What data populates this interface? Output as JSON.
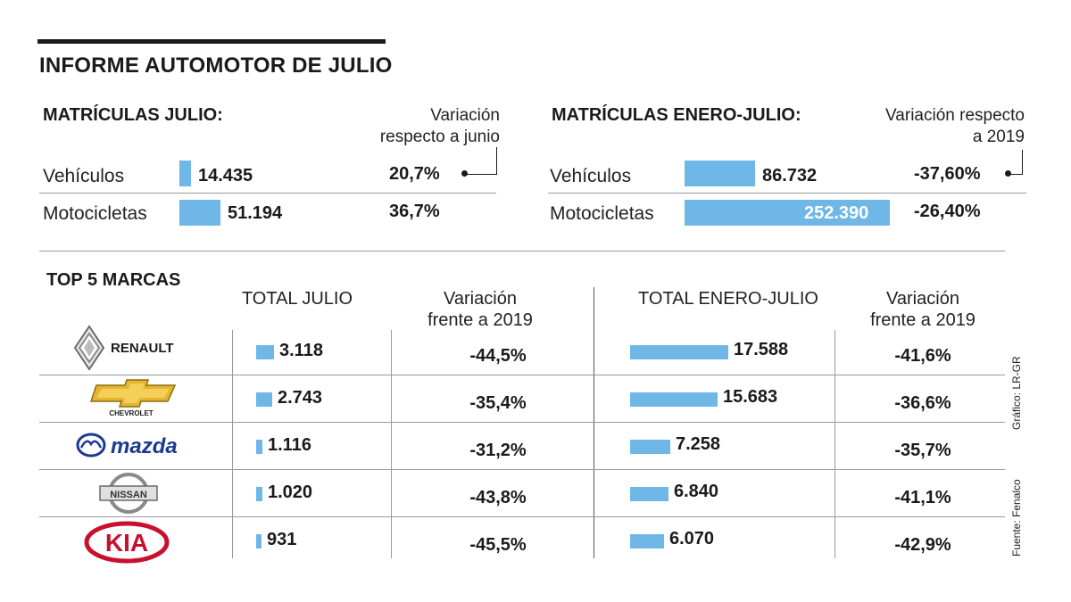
{
  "title": "INFORME AUTOMOTOR DE JULIO",
  "julio": {
    "heading": "MATRÍCULAS JULIO:",
    "var_line1": "Variación",
    "var_line2": "respecto a junio",
    "rows": [
      {
        "label": "Vehículos",
        "value_text": "14.435",
        "value": 14435,
        "pct": "20,7%"
      },
      {
        "label": "Motocicletas",
        "value_text": "51.194",
        "value": 51194,
        "pct": "36,7%"
      }
    ]
  },
  "enero_julio": {
    "heading": "MATRÍCULAS ENERO-JULIO:",
    "var_line1": "Variación respecto",
    "var_line2": "a 2019",
    "rows": [
      {
        "label": "Vehículos",
        "value_text": "86.732",
        "value": 86732,
        "pct": "-37,60%"
      },
      {
        "label": "Motocicletas",
        "value_text": "252.390",
        "value": 252390,
        "pct": "-26,40%"
      }
    ]
  },
  "top5": {
    "heading": "TOP 5 MARCAS",
    "col_total_julio": "TOTAL JULIO",
    "col_var_line1": "Variación",
    "col_var_line2": "frente a 2019",
    "col_total_enero": "TOTAL ENERO-JULIO",
    "col_var2_line1": "Variación",
    "col_var2_line2": "frente a 2019",
    "brands": [
      {
        "brand": "RENAULT",
        "julio_text": "3.118",
        "julio": 3118,
        "var_julio": "-44,5%",
        "enero_text": "17.588",
        "enero": 17588,
        "var_enero": "-41,6%"
      },
      {
        "brand": "CHEVROLET",
        "julio_text": "2.743",
        "julio": 2743,
        "var_julio": "-35,4%",
        "enero_text": "15.683",
        "enero": 15683,
        "var_enero": "-36,6%"
      },
      {
        "brand": "mazda",
        "julio_text": "1.116",
        "julio": 1116,
        "var_julio": "-31,2%",
        "enero_text": "7.258",
        "enero": 7258,
        "var_enero": "-35,7%"
      },
      {
        "brand": "NISSAN",
        "julio_text": "1.020",
        "julio": 1020,
        "var_julio": "-43,8%",
        "enero_text": "6.840",
        "enero": 6840,
        "var_enero": "-41,1%"
      },
      {
        "brand": "KIA",
        "julio_text": "931",
        "julio": 931,
        "var_julio": "-45,5%",
        "enero_text": "6.070",
        "enero": 6070,
        "var_enero": "-42,9%"
      }
    ]
  },
  "credits": {
    "grafico": "Gráfico: LR-GR",
    "fuente": "Fuente: Fenalco"
  },
  "colors": {
    "bar": "#6fb7e6",
    "text": "#1a1a1a",
    "kia_red": "#c8102e",
    "mazda_blue": "#1a3a8f"
  },
  "chart_data": [
    {
      "type": "bar",
      "title": "MATRÍCULAS JULIO:",
      "categories": [
        "Vehículos",
        "Motocicletas"
      ],
      "values": [
        14435,
        51194
      ],
      "variation_pct": [
        20.7,
        36.7
      ]
    },
    {
      "type": "bar",
      "title": "MATRÍCULAS ENERO-JULIO:",
      "categories": [
        "Vehículos",
        "Motocicletas"
      ],
      "values": [
        86732,
        252390
      ],
      "variation_pct": [
        -37.6,
        -26.4
      ]
    },
    {
      "type": "bar",
      "title": "TOP 5 MARCAS - TOTAL JULIO",
      "categories": [
        "Renault",
        "Chevrolet",
        "Mazda",
        "Nissan",
        "Kia"
      ],
      "values": [
        3118,
        2743,
        1116,
        1020,
        931
      ],
      "variation_pct": [
        -44.5,
        -35.4,
        -31.2,
        -43.8,
        -45.5
      ]
    },
    {
      "type": "bar",
      "title": "TOP 5 MARCAS - TOTAL ENERO-JULIO",
      "categories": [
        "Renault",
        "Chevrolet",
        "Mazda",
        "Nissan",
        "Kia"
      ],
      "values": [
        17588,
        15683,
        7258,
        6840,
        6070
      ],
      "variation_pct": [
        -41.6,
        -36.6,
        -35.7,
        -41.1,
        -42.9
      ]
    }
  ]
}
